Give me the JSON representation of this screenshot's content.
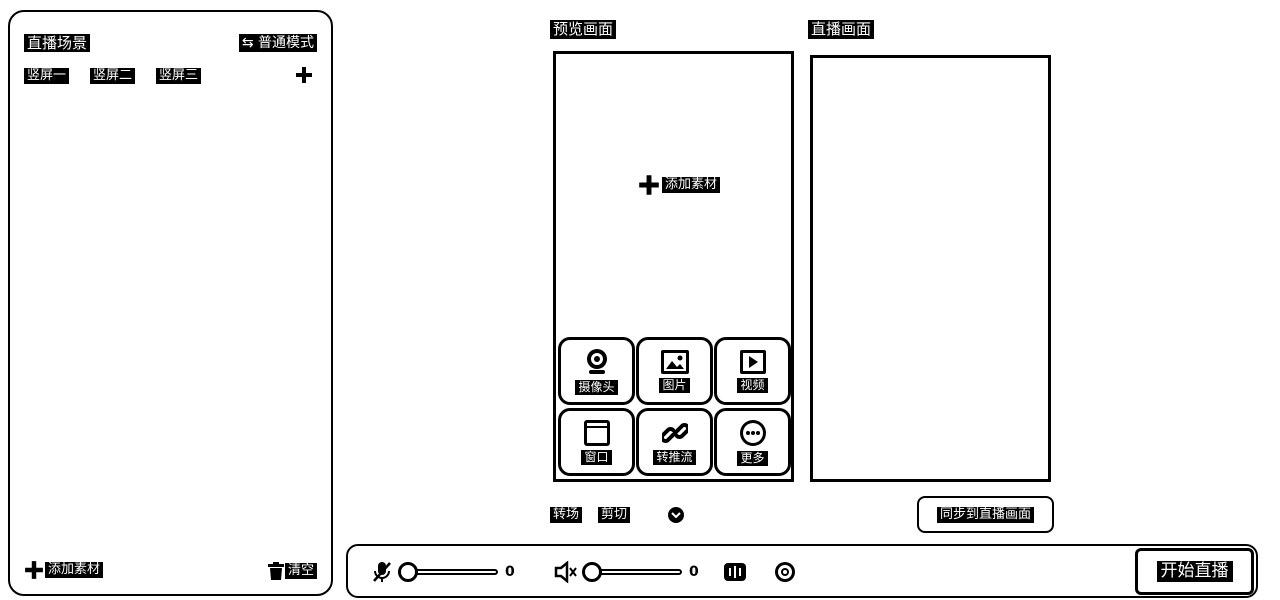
{
  "scene_panel": {
    "title": "直播场景",
    "mode_toggle": "⇆ 普通模式",
    "tabs": [
      "竖屏一",
      "竖屏二",
      "竖屏三"
    ],
    "add_material": "添加素材",
    "clear": "清空"
  },
  "preview": {
    "title": "预览画面",
    "add_material": "添加素材",
    "sources": [
      {
        "label": "摄像头",
        "icon": "camera-icon"
      },
      {
        "label": "图片",
        "icon": "image-icon"
      },
      {
        "label": "视频",
        "icon": "video-icon"
      },
      {
        "label": "窗口",
        "icon": "window-icon"
      },
      {
        "label": "转推流",
        "icon": "link-icon"
      },
      {
        "label": "更多",
        "icon": "more-icon"
      }
    ]
  },
  "live": {
    "title": "直播画面"
  },
  "transition": {
    "tab_transition": "转场",
    "tab_cut": "剪切",
    "sync_button": "同步到直播画面"
  },
  "audio": {
    "mic_volume": "0",
    "speaker_volume": "0",
    "mic_level": 0,
    "speaker_level": 0
  },
  "start_button": "开始直播"
}
